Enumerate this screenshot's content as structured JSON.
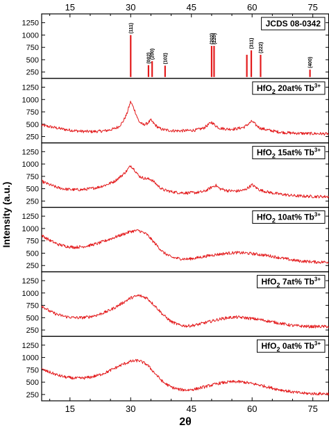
{
  "chart_data": {
    "type": "line",
    "xlabel": "2θ",
    "ylabel": "Intensity (a.u.)",
    "xlim": [
      8,
      79
    ],
    "ylim": [
      150,
      1400
    ],
    "xticks": [
      "15",
      "30",
      "45",
      "60",
      "75"
    ],
    "yticks": [
      "250",
      "500",
      "750",
      "1000",
      "1250"
    ],
    "color": "#e31a1c",
    "reference": {
      "label": "JCDS 08-0342",
      "peaks": [
        {
          "x": 30.0,
          "y": 1000,
          "label": "(111)"
        },
        {
          "x": 34.4,
          "y": 390,
          "label": "(002)"
        },
        {
          "x": 35.3,
          "y": 470,
          "label": "(200)"
        },
        {
          "x": 38.5,
          "y": 380,
          "label": "(102)"
        },
        {
          "x": 50.0,
          "y": 780,
          "label": "(202)"
        },
        {
          "x": 50.6,
          "y": 780,
          "label": "(220)"
        },
        {
          "x": 58.7,
          "y": 600,
          "label": ""
        },
        {
          "x": 59.8,
          "y": 690,
          "label": "(311)"
        },
        {
          "x": 62.1,
          "y": 600,
          "label": "(222)"
        },
        {
          "x": 74.3,
          "y": 300,
          "label": "(400)"
        }
      ]
    },
    "series": [
      {
        "label_pre": "HfO",
        "label_sub": "2",
        "label_post": " 20at% Tb",
        "label_sup": "3+",
        "x": [
          8,
          10,
          12,
          14,
          16,
          18,
          20,
          22,
          24,
          26,
          27,
          28,
          29,
          30,
          31,
          32,
          33,
          34,
          35,
          36,
          37,
          38,
          40,
          42,
          44,
          46,
          48,
          49,
          50,
          51,
          52,
          54,
          56,
          58,
          59,
          60,
          61,
          62,
          64,
          66,
          68,
          70,
          72,
          74,
          76,
          78,
          79
        ],
        "values": [
          480,
          450,
          420,
          390,
          370,
          355,
          350,
          355,
          370,
          410,
          450,
          540,
          700,
          960,
          780,
          560,
          490,
          510,
          580,
          490,
          420,
          390,
          370,
          365,
          370,
          380,
          420,
          480,
          540,
          470,
          420,
          400,
          405,
          440,
          500,
          560,
          480,
          420,
          380,
          350,
          330,
          320,
          315,
          310,
          310,
          305,
          305
        ]
      },
      {
        "label_pre": "HfO",
        "label_sub": "2",
        "label_post": " 15at% Tb",
        "label_sup": "3+",
        "x": [
          8,
          10,
          12,
          14,
          16,
          18,
          20,
          22,
          24,
          26,
          28,
          29,
          30,
          31,
          32,
          33,
          34,
          35,
          36,
          37,
          38,
          40,
          42,
          44,
          46,
          48,
          49,
          50,
          51,
          52,
          54,
          56,
          58,
          59,
          60,
          61,
          62,
          64,
          66,
          68,
          70,
          72,
          74,
          76,
          78,
          79
        ],
        "values": [
          650,
          580,
          520,
          490,
          480,
          480,
          500,
          530,
          580,
          650,
          780,
          860,
          970,
          880,
          760,
          720,
          700,
          690,
          620,
          540,
          480,
          440,
          420,
          415,
          420,
          440,
          480,
          530,
          570,
          500,
          460,
          450,
          470,
          520,
          580,
          520,
          470,
          430,
          400,
          380,
          360,
          350,
          345,
          340,
          340,
          340
        ]
      },
      {
        "label_pre": "HfO",
        "label_sub": "2",
        "label_post": " 10at% Tb",
        "label_sup": "3+",
        "x": [
          8,
          10,
          12,
          14,
          16,
          18,
          20,
          22,
          24,
          26,
          28,
          30,
          32,
          34,
          36,
          38,
          40,
          42,
          44,
          46,
          48,
          50,
          52,
          54,
          56,
          58,
          60,
          62,
          64,
          66,
          68,
          70,
          72,
          74,
          76,
          78,
          79
        ],
        "values": [
          860,
          760,
          680,
          640,
          620,
          630,
          660,
          700,
          760,
          820,
          880,
          940,
          960,
          880,
          700,
          520,
          420,
          390,
          380,
          400,
          430,
          460,
          480,
          500,
          510,
          505,
          490,
          470,
          450,
          420,
          390,
          360,
          340,
          330,
          320,
          320,
          320
        ]
      },
      {
        "label_pre": "HfO",
        "label_sub": "2",
        "label_post": " 7at% Tb",
        "label_sup": "3+",
        "x": [
          8,
          10,
          12,
          14,
          16,
          18,
          20,
          22,
          24,
          26,
          28,
          30,
          32,
          34,
          36,
          38,
          40,
          42,
          44,
          46,
          48,
          50,
          52,
          54,
          56,
          58,
          60,
          62,
          64,
          66,
          68,
          70,
          72,
          74,
          76,
          78,
          79
        ],
        "values": [
          740,
          630,
          560,
          520,
          500,
          500,
          520,
          560,
          620,
          700,
          800,
          900,
          950,
          900,
          740,
          560,
          420,
          350,
          330,
          350,
          390,
          430,
          470,
          500,
          510,
          500,
          480,
          460,
          430,
          400,
          370,
          340,
          330,
          320,
          320,
          320,
          320
        ]
      },
      {
        "label_pre": "HfO",
        "label_sub": "2",
        "label_post": " 0at% Tb",
        "label_sup": "3+",
        "x": [
          8,
          10,
          12,
          14,
          16,
          18,
          20,
          22,
          24,
          26,
          28,
          30,
          32,
          34,
          36,
          38,
          40,
          42,
          44,
          46,
          48,
          50,
          52,
          54,
          56,
          58,
          60,
          62,
          64,
          66,
          68,
          70,
          72,
          74,
          76,
          78,
          79
        ],
        "values": [
          760,
          700,
          640,
          600,
          580,
          580,
          600,
          640,
          700,
          780,
          860,
          920,
          940,
          860,
          680,
          500,
          400,
          350,
          340,
          360,
          400,
          440,
          480,
          500,
          510,
          500,
          470,
          440,
          400,
          360,
          330,
          300,
          280,
          270,
          265,
          265,
          265
        ]
      }
    ]
  }
}
